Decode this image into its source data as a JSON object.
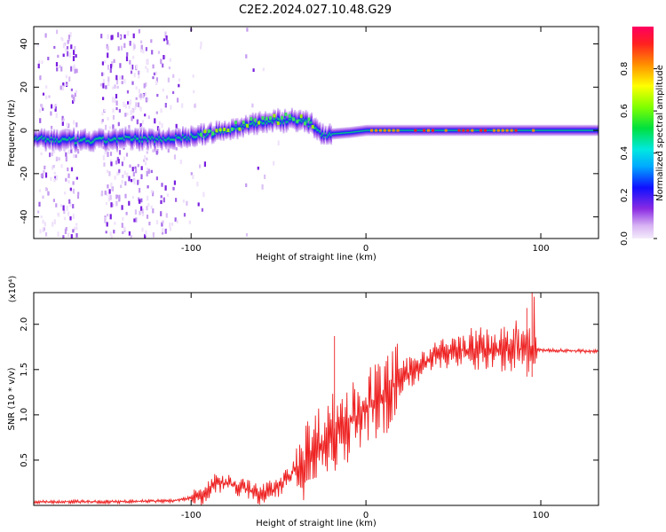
{
  "title": "C2E2.2024.027.10.48.G29",
  "chart_data": [
    {
      "type": "heatmap",
      "xlabel": "Height of straight line (km)",
      "ylabel": "Frequency (Hz)",
      "xlim": [
        -190,
        133
      ],
      "ylim": [
        -50,
        48
      ],
      "xticks": [
        "-100",
        "0",
        "100"
      ],
      "yticks": [
        "-40",
        "-20",
        "0",
        "20",
        "40"
      ],
      "colorbar": {
        "label": "Normalized spectral amplitude",
        "range": [
          0,
          1
        ],
        "ticks": [
          "0.0",
          "0.2",
          "0.4",
          "0.6",
          "0.8"
        ],
        "colormap": "rainbow"
      },
      "ridge": [
        {
          "x": -190,
          "y": -4
        },
        {
          "x": -160,
          "y": -5
        },
        {
          "x": -140,
          "y": -4
        },
        {
          "x": -120,
          "y": -4
        },
        {
          "x": -100,
          "y": -3
        },
        {
          "x": -80,
          "y": 0
        },
        {
          "x": -60,
          "y": 4
        },
        {
          "x": -40,
          "y": 5
        },
        {
          "x": -30,
          "y": 2
        },
        {
          "x": -25,
          "y": -2
        },
        {
          "x": -10,
          "y": -1
        },
        {
          "x": 0,
          "y": 0
        },
        {
          "x": 50,
          "y": 0
        },
        {
          "x": 100,
          "y": 0
        },
        {
          "x": 133,
          "y": 0
        }
      ],
      "grid": false
    },
    {
      "type": "line",
      "xlabel": "Height of straight line (km)",
      "ylabel": "SNR (10 * v/v)",
      "scale_note": "(x10⁴)",
      "xlim": [
        -190,
        133
      ],
      "ylim": [
        0,
        2.35
      ],
      "xticks": [
        "-100",
        "0",
        "100"
      ],
      "yticks": [
        "0.5",
        "1.0",
        "1.5",
        "2.0"
      ],
      "color": "#ee2222",
      "series": [
        {
          "envelope": [
            {
              "x": -190,
              "y": 0.04
            },
            {
              "x": -150,
              "y": 0.04
            },
            {
              "x": -110,
              "y": 0.05
            },
            {
              "x": -95,
              "y": 0.1
            },
            {
              "x": -85,
              "y": 0.25
            },
            {
              "x": -75,
              "y": 0.22
            },
            {
              "x": -60,
              "y": 0.12
            },
            {
              "x": -50,
              "y": 0.2
            },
            {
              "x": -40,
              "y": 0.4
            },
            {
              "x": -30,
              "y": 0.6
            },
            {
              "x": -20,
              "y": 0.8
            },
            {
              "x": -10,
              "y": 0.9
            },
            {
              "x": 0,
              "y": 1.05
            },
            {
              "x": 10,
              "y": 1.2
            },
            {
              "x": 20,
              "y": 1.4
            },
            {
              "x": 30,
              "y": 1.55
            },
            {
              "x": 40,
              "y": 1.65
            },
            {
              "x": 55,
              "y": 1.72
            },
            {
              "x": 70,
              "y": 1.72
            },
            {
              "x": 85,
              "y": 1.73
            },
            {
              "x": 95,
              "y": 1.72
            },
            {
              "x": 110,
              "y": 1.71
            },
            {
              "x": 133,
              "y": 1.7
            }
          ],
          "peaks": [
            {
              "x": -18,
              "y": 1.87
            },
            {
              "x": 95,
              "y": 2.35
            },
            {
              "x": 92,
              "y": 2.18
            }
          ]
        }
      ],
      "grid": false
    }
  ]
}
